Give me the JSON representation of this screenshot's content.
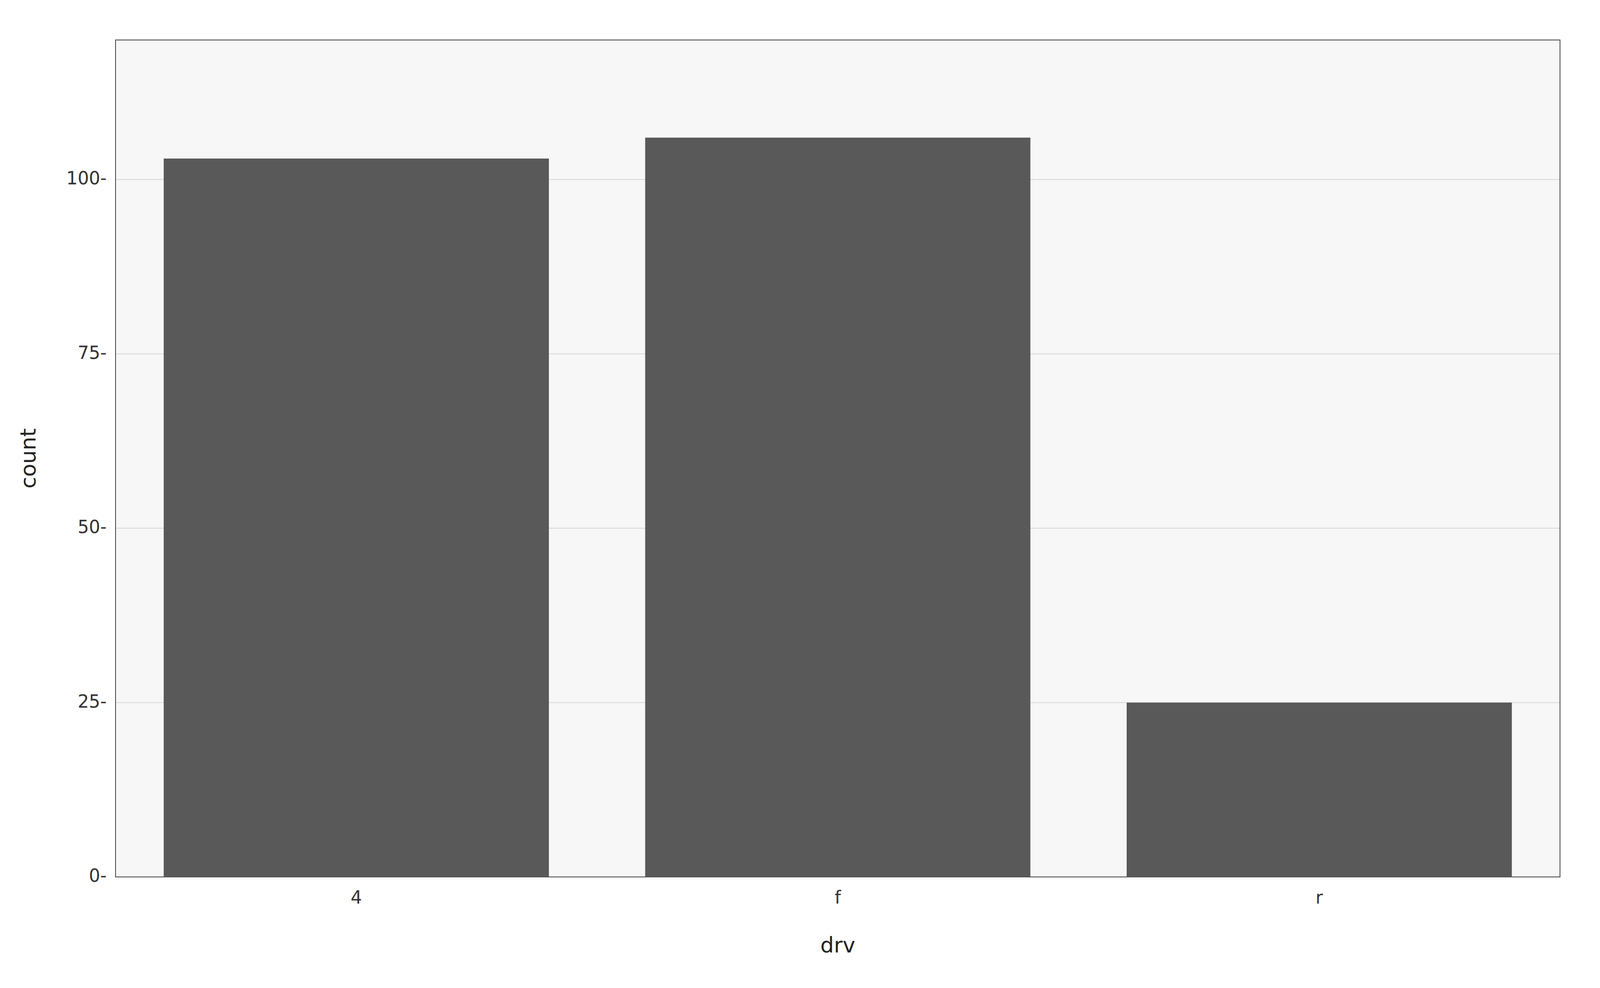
{
  "chart_data": {
    "type": "bar",
    "xlabel": "drv",
    "ylabel": "count",
    "categories": [
      "4",
      "f",
      "r"
    ],
    "values": [
      103,
      106,
      25
    ],
    "color": "#595959",
    "ylim": [
      0,
      120
    ],
    "yticks": [
      {
        "value": 0,
        "label": "0-"
      },
      {
        "value": 25,
        "label": "25-"
      },
      {
        "value": 50,
        "label": "50-"
      },
      {
        "value": 75,
        "label": "75-"
      },
      {
        "value": 100,
        "label": "100-"
      }
    ],
    "grid": true
  }
}
